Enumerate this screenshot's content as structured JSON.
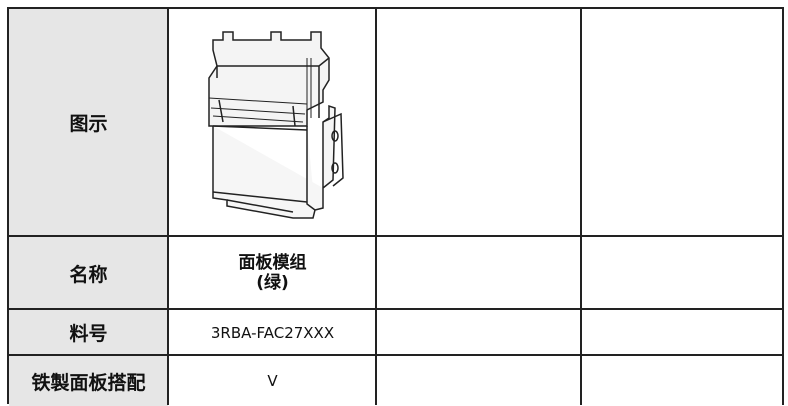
{
  "table": {
    "rows": [
      {
        "label": "图示"
      },
      {
        "label": "名称",
        "values": [
          "面板模组",
          "(绿)"
        ]
      },
      {
        "label": "料号",
        "values": [
          "3RBA-FAC27XXX"
        ]
      },
      {
        "label": "铁製面板搭配",
        "values": [
          "V"
        ]
      }
    ]
  }
}
